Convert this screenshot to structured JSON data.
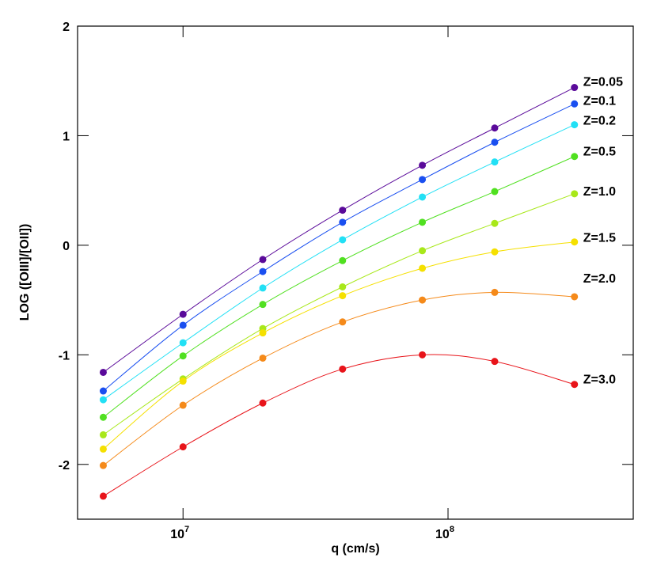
{
  "chart_data": {
    "type": "line",
    "x_label": "q (cm/s)",
    "y_label": "LOG ([OIII]/[OII])",
    "x": [
      5000000,
      10000000,
      20000000,
      40000000,
      80000000,
      150000000,
      300000000
    ],
    "xlim": [
      4000000,
      500000000
    ],
    "xscale": "log",
    "xticks": [
      {
        "value": 10000000,
        "label": "10",
        "exponent": "7"
      },
      {
        "value": 100000000,
        "label": "10",
        "exponent": "8"
      }
    ],
    "ylim": [
      -2.5,
      2
    ],
    "yticks": [
      -2,
      -1,
      0,
      1,
      2
    ],
    "series": [
      {
        "name": "Z=0.05",
        "color": "#5a0a9a",
        "values": [
          -1.16,
          -0.63,
          -0.13,
          0.32,
          0.73,
          1.07,
          1.44
        ]
      },
      {
        "name": "Z=0.1",
        "color": "#1a4ff0",
        "values": [
          -1.33,
          -0.73,
          -0.24,
          0.21,
          0.6,
          0.94,
          1.29
        ]
      },
      {
        "name": "Z=0.2",
        "color": "#22e0f5",
        "values": [
          -1.41,
          -0.89,
          -0.39,
          0.05,
          0.44,
          0.76,
          1.1
        ]
      },
      {
        "name": "Z=0.5",
        "color": "#50e020",
        "values": [
          -1.57,
          -1.01,
          -0.54,
          -0.14,
          0.21,
          0.49,
          0.81
        ]
      },
      {
        "name": "Z=1.0",
        "color": "#a8e81a",
        "values": [
          -1.73,
          -1.22,
          -0.76,
          -0.38,
          -0.05,
          0.2,
          0.47
        ]
      },
      {
        "name": "Z=1.5",
        "color": "#f5e000",
        "values": [
          -1.86,
          -1.24,
          -0.8,
          -0.46,
          -0.21,
          -0.06,
          0.03
        ]
      },
      {
        "name": "Z=2.0",
        "color": "#f58a1a",
        "values": [
          -2.01,
          -1.46,
          -1.03,
          -0.7,
          -0.5,
          -0.43,
          -0.47
        ]
      },
      {
        "name": "Z=3.0",
        "color": "#e8141a",
        "values": [
          -2.29,
          -1.84,
          -1.44,
          -1.13,
          -1.0,
          -1.06,
          -1.27
        ]
      }
    ]
  }
}
